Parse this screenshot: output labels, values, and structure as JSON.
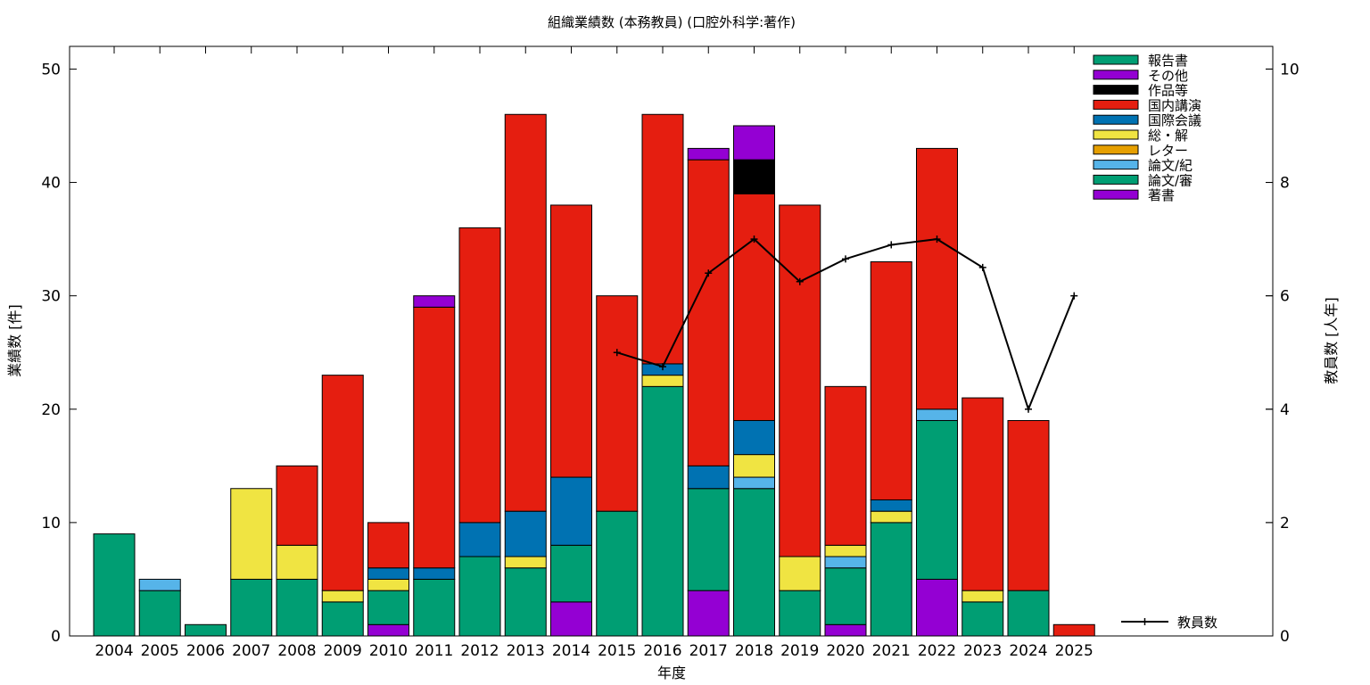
{
  "chart_data": {
    "type": "bar",
    "title": "組織業績数 (本務教員) (口腔外科学:著作)",
    "xlabel": "年度",
    "ylabel": "業績数 [件]",
    "y2label": "教員数 [人年]",
    "ylim": [
      0,
      52
    ],
    "y2lim": [
      0,
      10.4
    ],
    "yticks": [
      "0",
      "10",
      "20",
      "30",
      "40",
      "50"
    ],
    "y2ticks": [
      "0",
      "2",
      "4",
      "6",
      "8",
      "10"
    ],
    "stacked": true,
    "legend_position": "top-right",
    "categories": [
      "2004",
      "2005",
      "2006",
      "2007",
      "2008",
      "2009",
      "2010",
      "2011",
      "2012",
      "2013",
      "2014",
      "2015",
      "2016",
      "2017",
      "2018",
      "2019",
      "2020",
      "2021",
      "2022",
      "2023",
      "2024",
      "2025"
    ],
    "series": [
      {
        "name": "著書",
        "color": "#9400D3",
        "values": [
          0,
          0,
          0,
          0,
          0,
          0,
          1,
          0,
          0,
          0,
          3,
          0,
          0,
          4,
          0,
          0,
          1,
          0,
          5,
          0,
          0,
          0
        ]
      },
      {
        "name": "論文/審",
        "color": "#009E73",
        "values": [
          9,
          4,
          1,
          5,
          5,
          3,
          3,
          5,
          7,
          6,
          5,
          11,
          22,
          9,
          13,
          4,
          5,
          10,
          14,
          3,
          4,
          0
        ]
      },
      {
        "name": "論文/紀",
        "color": "#56B4E9",
        "values": [
          0,
          1,
          0,
          0,
          0,
          0,
          0,
          0,
          0,
          0,
          0,
          0,
          0,
          0,
          1,
          0,
          1,
          0,
          1,
          0,
          0,
          0
        ]
      },
      {
        "name": "レター",
        "color": "#E69F00",
        "values": [
          0,
          0,
          0,
          0,
          0,
          0,
          0,
          0,
          0,
          0,
          0,
          0,
          0,
          0,
          0,
          0,
          0,
          0,
          0,
          0,
          0,
          0
        ]
      },
      {
        "name": "総・解",
        "color": "#F0E442",
        "values": [
          0,
          0,
          0,
          8,
          3,
          1,
          1,
          0,
          0,
          1,
          0,
          0,
          1,
          0,
          2,
          3,
          1,
          1,
          0,
          1,
          0,
          0
        ]
      },
      {
        "name": "国際会議",
        "color": "#0072B2",
        "values": [
          0,
          0,
          0,
          0,
          0,
          0,
          1,
          1,
          3,
          4,
          6,
          0,
          1,
          2,
          3,
          0,
          0,
          1,
          0,
          0,
          0,
          0
        ]
      },
      {
        "name": "国内講演",
        "color": "#E51E10",
        "values": [
          0,
          0,
          0,
          0,
          7,
          19,
          4,
          23,
          26,
          35,
          24,
          19,
          22,
          27,
          20,
          31,
          14,
          21,
          23,
          17,
          15,
          1
        ]
      },
      {
        "name": "作品等",
        "color": "#000000",
        "values": [
          0,
          0,
          0,
          0,
          0,
          0,
          0,
          0,
          0,
          0,
          0,
          0,
          0,
          0,
          3,
          0,
          0,
          0,
          0,
          0,
          0,
          0
        ]
      },
      {
        "name": "その他",
        "color": "#9400D3",
        "values": [
          0,
          0,
          0,
          0,
          0,
          0,
          0,
          1,
          0,
          0,
          0,
          0,
          0,
          1,
          3,
          0,
          0,
          0,
          0,
          0,
          0,
          0
        ]
      },
      {
        "name": "報告書",
        "color": "#009E73",
        "values": [
          0,
          0,
          0,
          0,
          0,
          0,
          0,
          0,
          0,
          0,
          0,
          0,
          0,
          0,
          0,
          0,
          0,
          0,
          0,
          0,
          0,
          0
        ]
      }
    ],
    "line": {
      "name": "教員数",
      "color": "#000000",
      "categories": [
        "2015",
        "2016",
        "2017",
        "2018",
        "2019",
        "2020",
        "2021",
        "2022",
        "2023",
        "2024",
        "2025"
      ],
      "values": [
        5.0,
        4.75,
        6.4,
        7.0,
        6.25,
        6.65,
        6.9,
        7.0,
        6.5,
        4.0,
        6.0
      ]
    }
  }
}
